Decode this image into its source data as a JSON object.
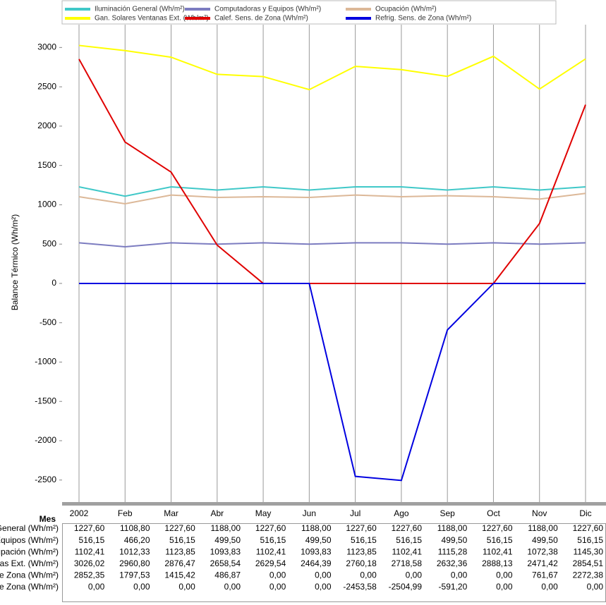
{
  "chart_data": {
    "type": "line",
    "x_label": "Mes",
    "y_label": "Balance Térmico (Wh/m²)",
    "categories": [
      "2002",
      "Feb",
      "Mar",
      "Abr",
      "May",
      "Jun",
      "Jul",
      "Ago",
      "Sep",
      "Oct",
      "Nov",
      "Dic"
    ],
    "ylim": [
      -2780,
      3290
    ],
    "yticks": [
      -2500,
      -2000,
      -1500,
      -1000,
      -500,
      0,
      500,
      1000,
      1500,
      2000,
      2500,
      3000
    ],
    "grid": "x",
    "legend": "top",
    "series": [
      {
        "name": "Iluminación General (Wh/m²)",
        "color": "#40c8c8",
        "values": [
          1227.6,
          1108.8,
          1227.6,
          1188,
          1227.6,
          1188,
          1227.6,
          1227.6,
          1188,
          1227.6,
          1188,
          1227.6
        ],
        "value_labels": [
          "1227,60",
          "1108,80",
          "1227,60",
          "1188,00",
          "1227,60",
          "1188,00",
          "1227,60",
          "1227,60",
          "1188,00",
          "1227,60",
          "1188,00",
          "1227,60"
        ]
      },
      {
        "name": "Computadoras y Equipos (Wh/m²)",
        "color": "#7c7cc0",
        "values": [
          516.15,
          466.2,
          516.15,
          499.5,
          516.15,
          499.5,
          516.15,
          516.15,
          499.5,
          516.15,
          499.5,
          516.15
        ],
        "value_labels": [
          "516,15",
          "466,20",
          "516,15",
          "499,50",
          "516,15",
          "499,50",
          "516,15",
          "516,15",
          "499,50",
          "516,15",
          "499,50",
          "516,15"
        ]
      },
      {
        "name": "Ocupación (Wh/m²)",
        "color": "#dcb898",
        "values": [
          1102.41,
          1012.33,
          1123.85,
          1093.83,
          1102.41,
          1093.83,
          1123.85,
          1102.41,
          1115.28,
          1102.41,
          1072.38,
          1145.3
        ],
        "value_labels": [
          "1102,41",
          "1012,33",
          "1123,85",
          "1093,83",
          "1102,41",
          "1093,83",
          "1123,85",
          "1102,41",
          "1115,28",
          "1102,41",
          "1072,38",
          "1145,30"
        ]
      },
      {
        "name": "Gan. Solares Ventanas Ext. (Wh/m²)",
        "color": "#ffff00",
        "values": [
          3026.02,
          2960.8,
          2876.47,
          2658.54,
          2629.54,
          2464.39,
          2760.18,
          2718.58,
          2632.36,
          2888.13,
          2471.42,
          2854.51
        ],
        "value_labels": [
          "3026,02",
          "2960,80",
          "2876,47",
          "2658,54",
          "2629,54",
          "2464,39",
          "2760,18",
          "2718,58",
          "2632,36",
          "2888,13",
          "2471,42",
          "2854,51"
        ]
      },
      {
        "name": "Calef. Sens. de Zona (Wh/m²)",
        "color": "#e00000",
        "values": [
          2852.35,
          1797.53,
          1415.42,
          486.87,
          0,
          0,
          0,
          0,
          0,
          0,
          761.67,
          2272.38
        ],
        "value_labels": [
          "2852,35",
          "1797,53",
          "1415,42",
          "486,87",
          "0,00",
          "0,00",
          "0,00",
          "0,00",
          "0,00",
          "0,00",
          "761,67",
          "2272,38"
        ]
      },
      {
        "name": "Refrig. Sens. de Zona (Wh/m²)",
        "color": "#0000e0",
        "values": [
          0,
          0,
          0,
          0,
          0,
          0,
          -2453.58,
          -2504.99,
          -591.2,
          0,
          0,
          0
        ],
        "value_labels": [
          "0,00",
          "0,00",
          "0,00",
          "0,00",
          "0,00",
          "0,00",
          "-2453,58",
          "-2504,99",
          "-591,20",
          "0,00",
          "0,00",
          "0,00"
        ]
      }
    ]
  }
}
